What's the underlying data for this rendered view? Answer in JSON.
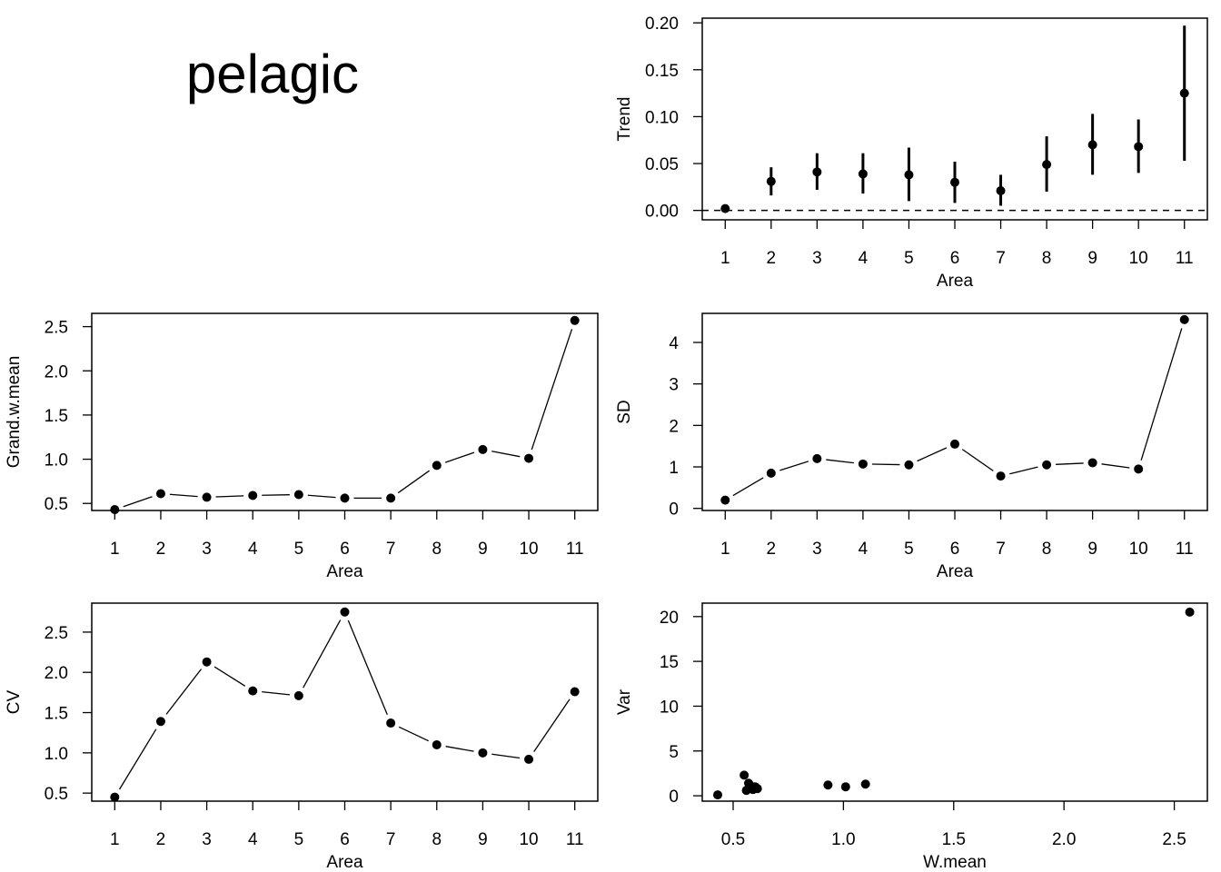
{
  "figure": {
    "title": "pelagic"
  },
  "chart_data": [
    {
      "id": "trend",
      "type": "scatter",
      "xlabel": "Area",
      "ylabel": "Trend",
      "xlim": [
        0.5,
        11.5
      ],
      "ylim": [
        -0.01,
        0.205
      ],
      "xticks": [
        1,
        2,
        3,
        4,
        5,
        6,
        7,
        8,
        9,
        10,
        11
      ],
      "yticks": [
        "0.00",
        "0.05",
        "0.10",
        "0.15",
        "0.20"
      ],
      "x": [
        1,
        2,
        3,
        4,
        5,
        6,
        7,
        8,
        9,
        10,
        11
      ],
      "y": [
        0.002,
        0.031,
        0.041,
        0.039,
        0.038,
        0.03,
        0.021,
        0.049,
        0.07,
        0.068,
        0.125
      ],
      "lower": [
        0.0,
        0.016,
        0.022,
        0.018,
        0.01,
        0.008,
        0.005,
        0.02,
        0.038,
        0.04,
        0.053
      ],
      "upper": [
        0.005,
        0.046,
        0.061,
        0.061,
        0.067,
        0.052,
        0.038,
        0.079,
        0.103,
        0.097,
        0.197
      ],
      "reference_line": 0,
      "grid": false
    },
    {
      "id": "grand-w-mean",
      "type": "line",
      "xlabel": "Area",
      "ylabel": "Grand.w.mean",
      "xlim": [
        0.5,
        11.5
      ],
      "ylim": [
        0.42,
        2.65
      ],
      "xticks": [
        1,
        2,
        3,
        4,
        5,
        6,
        7,
        8,
        9,
        10,
        11
      ],
      "yticks": [
        "0.5",
        "1.0",
        "1.5",
        "2.0",
        "2.5"
      ],
      "x": [
        1,
        2,
        3,
        4,
        5,
        6,
        7,
        8,
        9,
        10,
        11
      ],
      "y": [
        0.43,
        0.61,
        0.57,
        0.59,
        0.6,
        0.56,
        0.56,
        0.93,
        1.11,
        1.01,
        2.57
      ],
      "grid": false
    },
    {
      "id": "sd",
      "type": "line",
      "xlabel": "Area",
      "ylabel": "SD",
      "xlim": [
        0.5,
        11.5
      ],
      "ylim": [
        -0.05,
        4.7
      ],
      "xticks": [
        1,
        2,
        3,
        4,
        5,
        6,
        7,
        8,
        9,
        10,
        11
      ],
      "yticks": [
        "0",
        "1",
        "2",
        "3",
        "4"
      ],
      "x": [
        1,
        2,
        3,
        4,
        5,
        6,
        7,
        8,
        9,
        10,
        11
      ],
      "y": [
        0.2,
        0.85,
        1.2,
        1.07,
        1.05,
        1.55,
        0.78,
        1.05,
        1.1,
        0.95,
        4.55
      ],
      "grid": false
    },
    {
      "id": "cv",
      "type": "line",
      "xlabel": "Area",
      "ylabel": "CV",
      "xlim": [
        0.5,
        11.5
      ],
      "ylim": [
        0.4,
        2.86
      ],
      "xticks": [
        1,
        2,
        3,
        4,
        5,
        6,
        7,
        8,
        9,
        10,
        11
      ],
      "yticks": [
        "0.5",
        "1.0",
        "1.5",
        "2.0",
        "2.5"
      ],
      "x": [
        1,
        2,
        3,
        4,
        5,
        6,
        7,
        8,
        9,
        10,
        11
      ],
      "y": [
        0.45,
        1.39,
        2.13,
        1.77,
        1.71,
        2.75,
        1.37,
        1.1,
        1.0,
        0.92,
        1.76
      ],
      "grid": false
    },
    {
      "id": "var-vs-wmean",
      "type": "scatter",
      "xlabel": "W.mean",
      "ylabel": "Var",
      "xlim": [
        0.36,
        2.65
      ],
      "ylim": [
        -0.6,
        21.5
      ],
      "xticks": [
        "0.5",
        "1.0",
        "1.5",
        "2.0",
        "2.5"
      ],
      "yticks": [
        "0",
        "5",
        "10",
        "15",
        "20"
      ],
      "x": [
        0.43,
        0.55,
        0.56,
        0.57,
        0.58,
        0.59,
        0.6,
        0.61,
        0.93,
        1.01,
        1.1,
        2.57
      ],
      "y": [
        0.1,
        2.3,
        0.6,
        1.4,
        1.1,
        0.7,
        1.0,
        0.8,
        1.2,
        1.0,
        1.3,
        20.5
      ],
      "grid": false
    }
  ]
}
